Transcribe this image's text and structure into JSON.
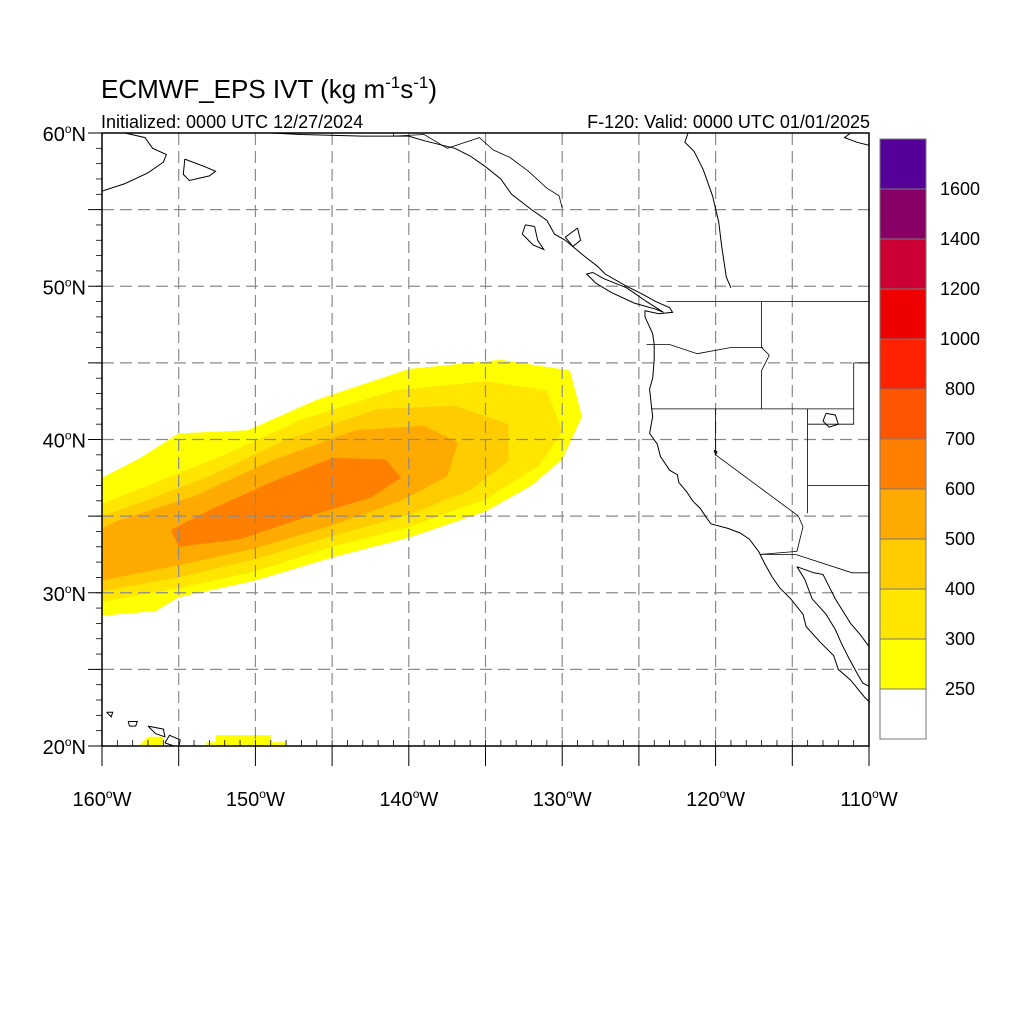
{
  "title": {
    "main": "ECMWF_EPS IVT (kg m",
    "sup1": "-1",
    "mid": "s",
    "sup2": "-1",
    "end": ")"
  },
  "subtitle_left": "Initialized: 0000 UTC 12/27/2024",
  "subtitle_right": "F-120: Valid: 0000 UTC 01/01/2025",
  "lon_ticks": [
    {
      "value": -160,
      "label": "160",
      "hemi": "W"
    },
    {
      "value": -150,
      "label": "150",
      "hemi": "W"
    },
    {
      "value": -140,
      "label": "140",
      "hemi": "W"
    },
    {
      "value": -130,
      "label": "130",
      "hemi": "W"
    },
    {
      "value": -120,
      "label": "120",
      "hemi": "W"
    },
    {
      "value": -110,
      "label": "110",
      "hemi": "W"
    }
  ],
  "lat_ticks": [
    {
      "value": 60,
      "label": "60",
      "hemi": "N"
    },
    {
      "value": 50,
      "label": "50",
      "hemi": "N"
    },
    {
      "value": 40,
      "label": "40",
      "hemi": "N"
    },
    {
      "value": 30,
      "label": "30",
      "hemi": "N"
    },
    {
      "value": 20,
      "label": "20",
      "hemi": "N"
    }
  ],
  "extent": {
    "lon_min": -160,
    "lon_max": -110,
    "lat_min": 20,
    "lat_max": 60
  },
  "colorbar": {
    "levels": [
      {
        "label": "",
        "color": "#ffffff"
      },
      {
        "label": "250",
        "color": "#ffff00"
      },
      {
        "label": "300",
        "color": "#ffe600"
      },
      {
        "label": "400",
        "color": "#ffcc00"
      },
      {
        "label": "500",
        "color": "#ffaa00"
      },
      {
        "label": "600",
        "color": "#ff8000"
      },
      {
        "label": "700",
        "color": "#ff5500"
      },
      {
        "label": "800",
        "color": "#ff2200"
      },
      {
        "label": "1000",
        "color": "#ee0000"
      },
      {
        "label": "1200",
        "color": "#cc0033"
      },
      {
        "label": "1400",
        "color": "#880066"
      },
      {
        "label": "1600",
        "color": "#550099"
      }
    ]
  },
  "ivt_field": [
    {
      "level": 1,
      "polygon": [
        [
          -160,
          28.5
        ],
        [
          -156.5,
          28.8
        ],
        [
          -155,
          29.7
        ],
        [
          -150,
          30.8
        ],
        [
          -145,
          32.3
        ],
        [
          -140,
          33.6
        ],
        [
          -135,
          35.3
        ],
        [
          -132,
          37.0
        ],
        [
          -130,
          38.7
        ],
        [
          -128.7,
          41.5
        ],
        [
          -129.5,
          44.5
        ],
        [
          -134,
          45.2
        ],
        [
          -140,
          44.6
        ],
        [
          -146,
          42.6
        ],
        [
          -150.5,
          40.6
        ],
        [
          -155,
          40.4
        ],
        [
          -157.5,
          38.8
        ],
        [
          -160,
          37.5
        ]
      ]
    },
    {
      "level": 2,
      "polygon": [
        [
          -160,
          29.4
        ],
        [
          -155,
          30.3
        ],
        [
          -150,
          31.4
        ],
        [
          -145,
          33.0
        ],
        [
          -140,
          34.3
        ],
        [
          -135,
          36.1
        ],
        [
          -131.5,
          38.3
        ],
        [
          -130,
          40.5
        ],
        [
          -131,
          43.2
        ],
        [
          -135,
          43.8
        ],
        [
          -141,
          43.2
        ],
        [
          -147,
          41.3
        ],
        [
          -152,
          39.0
        ],
        [
          -157,
          37.0
        ],
        [
          -160,
          35.8
        ]
      ]
    },
    {
      "level": 3,
      "polygon": [
        [
          -160,
          30.1
        ],
        [
          -155,
          31.0
        ],
        [
          -150,
          32.2
        ],
        [
          -145,
          33.7
        ],
        [
          -140,
          35.1
        ],
        [
          -136,
          36.7
        ],
        [
          -133.5,
          38.6
        ],
        [
          -133.5,
          41.0
        ],
        [
          -137,
          42.2
        ],
        [
          -142,
          42.0
        ],
        [
          -148,
          40.0
        ],
        [
          -153,
          37.6
        ],
        [
          -158,
          35.7
        ],
        [
          -160,
          35.0
        ]
      ]
    },
    {
      "level": 4,
      "polygon": [
        [
          -160,
          30.8
        ],
        [
          -155.5,
          31.7
        ],
        [
          -150,
          32.9
        ],
        [
          -145,
          34.4
        ],
        [
          -140.5,
          36.0
        ],
        [
          -137.5,
          37.6
        ],
        [
          -136.8,
          39.8
        ],
        [
          -139,
          40.9
        ],
        [
          -143.5,
          40.6
        ],
        [
          -149,
          38.6
        ],
        [
          -154,
          36.3
        ],
        [
          -159,
          34.7
        ],
        [
          -160,
          34.2
        ]
      ]
    },
    {
      "level": 5,
      "polygon": [
        [
          -155,
          33.0
        ],
        [
          -151,
          33.5
        ],
        [
          -146.5,
          35.0
        ],
        [
          -142.5,
          36.2
        ],
        [
          -140.5,
          37.5
        ],
        [
          -141.5,
          38.7
        ],
        [
          -145,
          38.8
        ],
        [
          -149,
          37.2
        ],
        [
          -153,
          35.4
        ],
        [
          -155.5,
          34.1
        ]
      ]
    },
    {
      "level": 1,
      "polygon": [
        [
          -157.6,
          20.0
        ],
        [
          -156,
          20.0
        ],
        [
          -156,
          20.6
        ],
        [
          -157,
          20.6
        ]
      ]
    },
    {
      "level": 1,
      "polygon": [
        [
          -153.2,
          20.0
        ],
        [
          -148,
          20.0
        ],
        [
          -148,
          20.25
        ],
        [
          -149,
          20.25
        ],
        [
          -149,
          20.7
        ],
        [
          -152.6,
          20.7
        ],
        [
          -152.6,
          20.25
        ],
        [
          -153.2,
          20.25
        ]
      ]
    }
  ],
  "coastlines": [
    [
      [
        -121.8,
        60.0
      ],
      [
        -122.0,
        59.4
      ],
      [
        -121.4,
        58.8
      ],
      [
        -120.8,
        57.6
      ],
      [
        -120.2,
        55.9
      ],
      [
        -119.8,
        54.2
      ],
      [
        -119.6,
        52.6
      ],
      [
        -119.3,
        50.6
      ],
      [
        -119.0,
        49.9
      ]
    ],
    [
      [
        -149,
        60
      ],
      [
        -147,
        59.9
      ],
      [
        -143,
        59.8
      ],
      [
        -140,
        59.8
      ],
      [
        -139,
        59.5
      ],
      [
        -137,
        59.0
      ],
      [
        -136,
        58.5
      ],
      [
        -135,
        57.8
      ],
      [
        -134,
        57.0
      ],
      [
        -133.3,
        56.0
      ],
      [
        -132.0,
        55.0
      ],
      [
        -131.0,
        54.3
      ],
      [
        -130.5,
        53.4
      ],
      [
        -129.8,
        53.0
      ],
      [
        -128.6,
        52.0
      ],
      [
        -127.7,
        51.3
      ],
      [
        -127.2,
        50.8
      ],
      [
        -125.8,
        50.0
      ],
      [
        -124.8,
        49.5
      ],
      [
        -123.9,
        49.0
      ],
      [
        -123.0,
        48.6
      ],
      [
        -122.8,
        48.3
      ],
      [
        -123.7,
        48.2
      ],
      [
        -124.6,
        48.4
      ],
      [
        -124.6,
        48.0
      ],
      [
        -124.1,
        46.9
      ],
      [
        -124.0,
        46.2
      ],
      [
        -124.0,
        45.2
      ],
      [
        -124.1,
        44.0
      ],
      [
        -124.3,
        43.3
      ],
      [
        -124.2,
        42.3
      ],
      [
        -124.1,
        41.5
      ],
      [
        -124.3,
        40.4
      ],
      [
        -123.8,
        39.7
      ],
      [
        -123.6,
        38.9
      ],
      [
        -123.0,
        38.0
      ],
      [
        -122.5,
        37.7
      ],
      [
        -122.4,
        37.2
      ],
      [
        -121.9,
        36.6
      ],
      [
        -121.5,
        36.0
      ],
      [
        -121.0,
        35.5
      ],
      [
        -120.6,
        34.9
      ],
      [
        -120.3,
        34.5
      ],
      [
        -119.2,
        34.2
      ],
      [
        -118.4,
        33.9
      ],
      [
        -117.8,
        33.5
      ],
      [
        -117.2,
        32.7
      ],
      [
        -116.8,
        31.9
      ],
      [
        -116.3,
        31.0
      ],
      [
        -115.8,
        30.3
      ],
      [
        -115.1,
        29.6
      ],
      [
        -114.3,
        28.6
      ],
      [
        -114.1,
        27.8
      ],
      [
        -113.2,
        26.8
      ],
      [
        -112.3,
        25.9
      ],
      [
        -112.0,
        25.0
      ],
      [
        -111.2,
        24.3
      ],
      [
        -110.3,
        23.2
      ],
      [
        -110.0,
        22.9
      ]
    ],
    [
      [
        -114.7,
        31.7
      ],
      [
        -114.2,
        30.9
      ],
      [
        -113.7,
        29.6
      ],
      [
        -112.8,
        28.6
      ],
      [
        -112.2,
        27.6
      ],
      [
        -111.8,
        26.7
      ],
      [
        -111.3,
        25.7
      ],
      [
        -110.7,
        24.6
      ],
      [
        -110.4,
        24.1
      ],
      [
        -110.0,
        23.9
      ]
    ],
    [
      [
        -114.7,
        31.7
      ],
      [
        -113.6,
        31.3
      ],
      [
        -113.0,
        31.2
      ],
      [
        -112.2,
        29.6
      ],
      [
        -111.2,
        28.0
      ],
      [
        -110.6,
        27.3
      ],
      [
        -110.0,
        26.5
      ]
    ],
    [
      [
        -154.6,
        58.3
      ],
      [
        -153.3,
        57.8
      ],
      [
        -152.6,
        57.5
      ],
      [
        -153.0,
        57.2
      ],
      [
        -154.3,
        56.9
      ],
      [
        -154.7,
        57.3
      ],
      [
        -154.6,
        58.3
      ]
    ],
    [
      [
        -160,
        56.2
      ],
      [
        -158.5,
        56.7
      ],
      [
        -157.0,
        57.4
      ],
      [
        -156.0,
        58.1
      ],
      [
        -155.8,
        58.6
      ],
      [
        -156.7,
        59.0
      ],
      [
        -157.2,
        59.7
      ],
      [
        -158.5,
        60.0
      ]
    ],
    [
      [
        -157.0,
        21.3
      ],
      [
        -156.0,
        21.1
      ],
      [
        -155.9,
        20.6
      ],
      [
        -156.5,
        20.8
      ],
      [
        -157.0,
        21.3
      ]
    ],
    [
      [
        -155.9,
        20.2
      ],
      [
        -155.0,
        19.9
      ],
      [
        -154.9,
        20.4
      ],
      [
        -155.6,
        20.7
      ],
      [
        -155.9,
        20.2
      ]
    ],
    [
      [
        -159.7,
        22.2
      ],
      [
        -159.3,
        22.2
      ],
      [
        -159.4,
        21.9
      ],
      [
        -159.7,
        22.2
      ]
    ],
    [
      [
        -158.3,
        21.6
      ],
      [
        -157.7,
        21.6
      ],
      [
        -157.8,
        21.3
      ],
      [
        -158.2,
        21.3
      ],
      [
        -158.3,
        21.6
      ]
    ],
    [
      [
        -129.0,
        53.8
      ],
      [
        -128.8,
        53.0
      ],
      [
        -129.3,
        52.6
      ],
      [
        -129.8,
        53.2
      ],
      [
        -129.0,
        53.8
      ]
    ],
    [
      [
        -131.8,
        53.9
      ],
      [
        -131.6,
        53.0
      ],
      [
        -131.2,
        52.4
      ],
      [
        -131.9,
        52.7
      ],
      [
        -132.6,
        53.4
      ],
      [
        -132.4,
        54.0
      ],
      [
        -131.8,
        53.9
      ]
    ],
    [
      [
        -128.0,
        50.9
      ],
      [
        -127.3,
        50.5
      ],
      [
        -125.8,
        49.9
      ],
      [
        -124.5,
        49.0
      ],
      [
        -123.4,
        48.3
      ],
      [
        -123.9,
        48.5
      ],
      [
        -125.3,
        48.9
      ],
      [
        -126.8,
        49.6
      ],
      [
        -127.8,
        50.2
      ],
      [
        -128.4,
        50.8
      ],
      [
        -128.0,
        50.9
      ]
    ],
    [
      [
        -111.2,
        60
      ],
      [
        -111.6,
        59.7
      ],
      [
        -110.8,
        59.4
      ],
      [
        -110,
        59.2
      ]
    ]
  ],
  "borders": [
    [
      [
        -141.0,
        60.0
      ],
      [
        -141.0,
        59.8
      ],
      [
        -139.0,
        59.9
      ],
      [
        -138.0,
        59.3
      ],
      [
        -137.5,
        59.0
      ],
      [
        -136.6,
        59.3
      ],
      [
        -135.4,
        59.7
      ],
      [
        -134.5,
        58.9
      ],
      [
        -133.4,
        58.4
      ],
      [
        -132.2,
        57.5
      ],
      [
        -131.0,
        56.4
      ],
      [
        -130.2,
        55.9
      ],
      [
        -130.0,
        55.1
      ]
    ],
    [
      [
        -123.2,
        49.0
      ],
      [
        -110,
        49.0
      ]
    ],
    [
      [
        -124.5,
        46.2
      ],
      [
        -123.0,
        46.2
      ],
      [
        -121.2,
        45.6
      ],
      [
        -119.0,
        46.0
      ],
      [
        -116.9,
        46.0
      ]
    ],
    [
      [
        -117.0,
        49.0
      ],
      [
        -117.0,
        46.0
      ],
      [
        -116.5,
        45.5
      ],
      [
        -117.0,
        44.5
      ],
      [
        -117.0,
        42.0
      ]
    ],
    [
      [
        -124.2,
        42.0
      ],
      [
        -111.0,
        42.0
      ]
    ],
    [
      [
        -120.0,
        42.0
      ],
      [
        -120.0,
        39.0
      ],
      [
        -114.6,
        35.0
      ]
    ],
    [
      [
        -114.6,
        35.0
      ],
      [
        -114.3,
        34.3
      ],
      [
        -114.7,
        32.7
      ],
      [
        -117.1,
        32.5
      ]
    ],
    [
      [
        -117.1,
        32.5
      ],
      [
        -114.8,
        32.5
      ],
      [
        -111.1,
        31.3
      ],
      [
        -108.2,
        31.3
      ]
    ],
    [
      [
        -114.0,
        42.0
      ],
      [
        -114.0,
        37.0
      ],
      [
        -114.0,
        35.2
      ]
    ],
    [
      [
        -111.0,
        45.0
      ],
      [
        -111.0,
        41.0
      ],
      [
        -114.0,
        41.0
      ]
    ],
    [
      [
        -114.0,
        37.0
      ],
      [
        -110,
        37.0
      ]
    ],
    [
      [
        -111.0,
        45.0
      ],
      [
        -110,
        45.0
      ]
    ]
  ],
  "lakes": [
    [
      [
        -112.8,
        41.7
      ],
      [
        -112.2,
        41.6
      ],
      [
        -112.0,
        41.0
      ],
      [
        -112.6,
        40.8
      ],
      [
        -113.0,
        41.2
      ],
      [
        -112.8,
        41.7
      ]
    ],
    [
      [
        -120.1,
        39.3
      ],
      [
        -119.9,
        39.2
      ],
      [
        -120.0,
        39.0
      ],
      [
        -120.1,
        39.3
      ]
    ]
  ]
}
